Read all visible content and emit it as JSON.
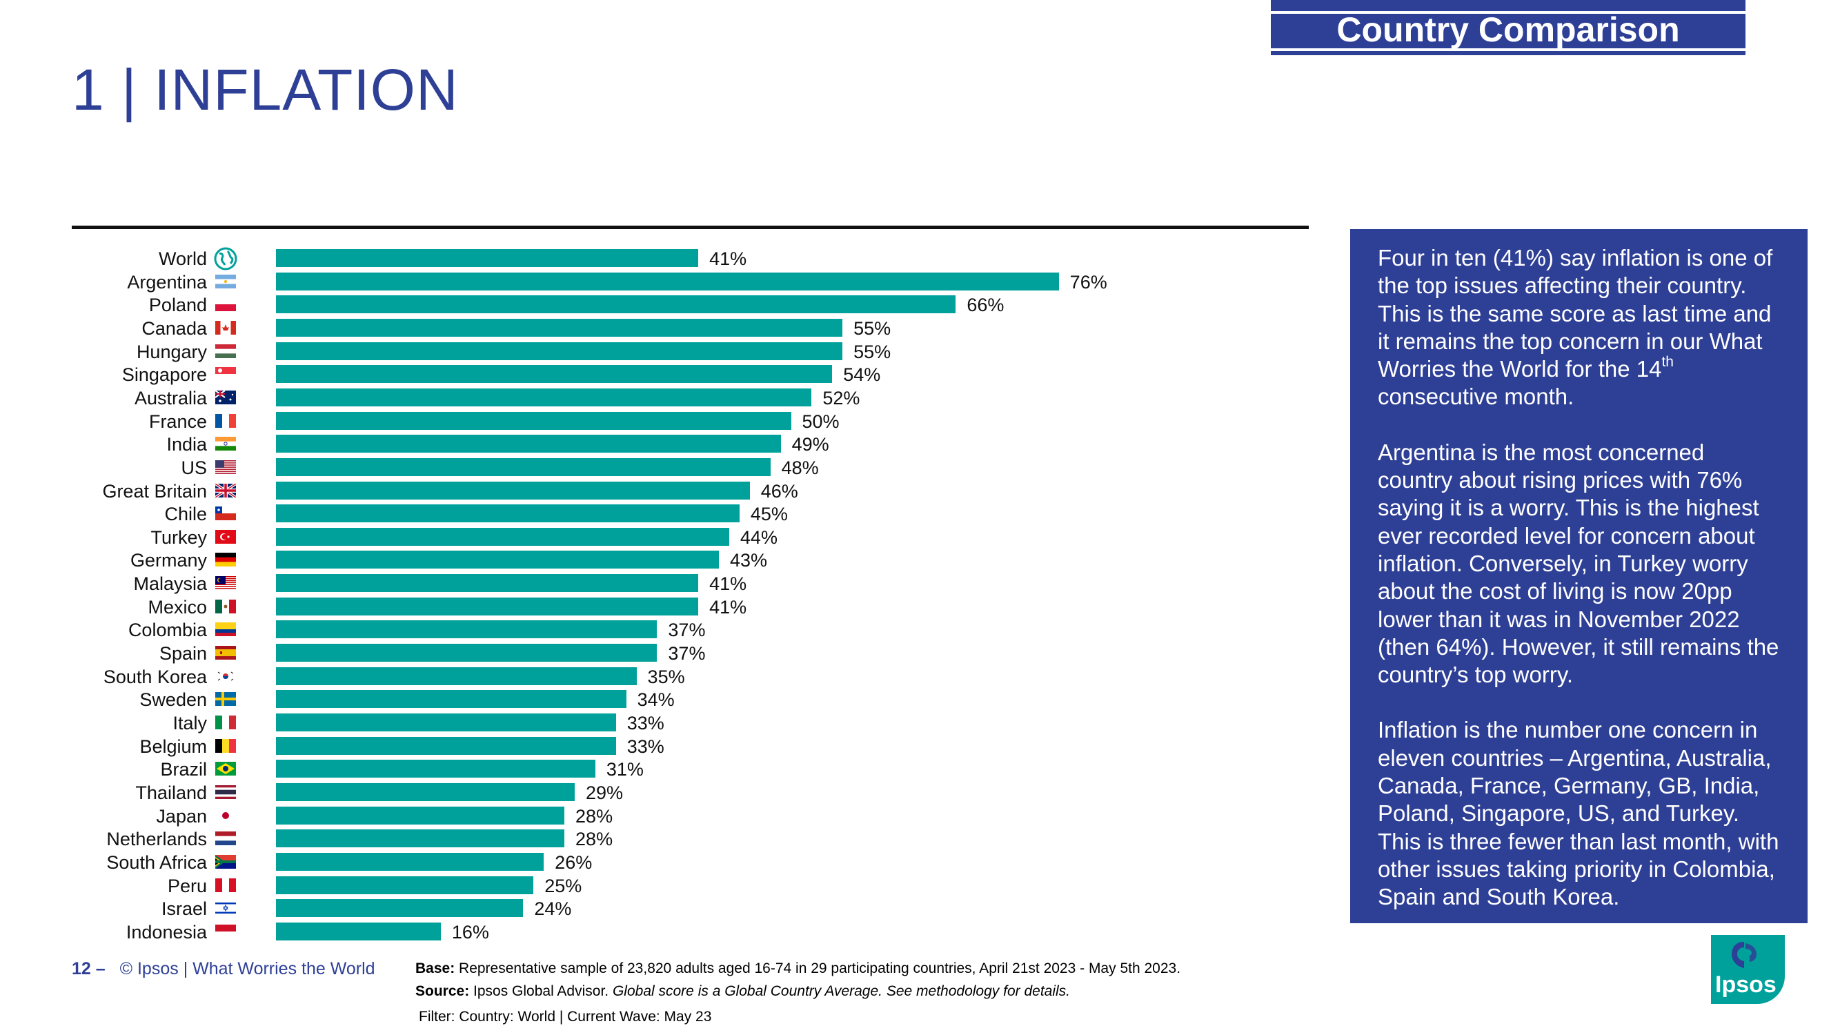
{
  "header": {
    "badge": "Country Comparison",
    "title": "1 | INFLATION"
  },
  "colors": {
    "brand_blue": "#2e3f96",
    "bar": "#00a19b",
    "text": "#111111"
  },
  "chart_data": {
    "type": "bar",
    "orientation": "horizontal",
    "title": "",
    "xlabel": "",
    "ylabel": "",
    "xlim": [
      0,
      100
    ],
    "grid": false,
    "legend": "none",
    "categories": [
      "World",
      "Argentina",
      "Poland",
      "Canada",
      "Hungary",
      "Singapore",
      "Australia",
      "France",
      "India",
      "US",
      "Great Britain",
      "Chile",
      "Turkey",
      "Germany",
      "Malaysia",
      "Mexico",
      "Colombia",
      "Spain",
      "South Korea",
      "Sweden",
      "Italy",
      "Belgium",
      "Brazil",
      "Thailand",
      "Japan",
      "Netherlands",
      "South Africa",
      "Peru",
      "Israel",
      "Indonesia"
    ],
    "values": [
      41,
      76,
      66,
      55,
      55,
      54,
      52,
      50,
      49,
      48,
      46,
      45,
      44,
      43,
      41,
      41,
      37,
      37,
      35,
      34,
      33,
      33,
      31,
      29,
      28,
      28,
      26,
      25,
      24,
      16
    ],
    "value_labels": [
      "41%",
      "76%",
      "66%",
      "55%",
      "55%",
      "54%",
      "52%",
      "50%",
      "49%",
      "48%",
      "46%",
      "45%",
      "44%",
      "43%",
      "41%",
      "41%",
      "37%",
      "37%",
      "35%",
      "34%",
      "33%",
      "33%",
      "31%",
      "29%",
      "28%",
      "28%",
      "26%",
      "25%",
      "24%",
      "16%"
    ],
    "flags": [
      "globe-icon",
      "argentina-flag",
      "poland-flag",
      "canada-flag",
      "hungary-flag",
      "singapore-flag",
      "australia-flag",
      "france-flag",
      "india-flag",
      "us-flag",
      "great-britain-flag",
      "chile-flag",
      "turkey-flag",
      "germany-flag",
      "malaysia-flag",
      "mexico-flag",
      "colombia-flag",
      "spain-flag",
      "south-korea-flag",
      "sweden-flag",
      "italy-flag",
      "belgium-flag",
      "brazil-flag",
      "thailand-flag",
      "japan-flag",
      "netherlands-flag",
      "south-africa-flag",
      "peru-flag",
      "israel-flag",
      "indonesia-flag"
    ]
  },
  "panel": {
    "p1_main": "Four in ten (41%) say inflation is one of the top issues affecting their country. This is the same score as last time and it remains the top concern in our What Worries the World for the 14",
    "p1_sup": "th",
    "p1_end": " consecutive month.",
    "p2": "Argentina is the most concerned country about rising prices with 76% saying it is a worry. This is the highest ever recorded level for concern about inflation. Conversely, in Turkey worry about the cost of living is now 20pp lower than it was in November 2022 (then 64%). However, it still remains the country’s top worry.",
    "p3": "Inflation is the number one concern in eleven countries – Argentina, Australia, Canada, France, Germany, GB, India, Poland, Singapore, US, and Turkey. This is three fewer than last month, with other issues taking priority in Colombia, Spain and South Korea."
  },
  "footer": {
    "page_number": "12 –",
    "copyright": "© Ipsos | What Worries the World",
    "base_label": "Base:",
    "base_text": " Representative sample of 23,820 adults aged 16-74 in 29 participating countries, April 21st 2023 - May 5th 2023.",
    "source_label": "Source:",
    "source_text": " Ipsos Global Advisor. ",
    "source_italic": "Global score is a Global Country Average. See methodology for details.",
    "filter": "Filter: Country: World | Current Wave: May 23",
    "logo": "Ipsos"
  }
}
